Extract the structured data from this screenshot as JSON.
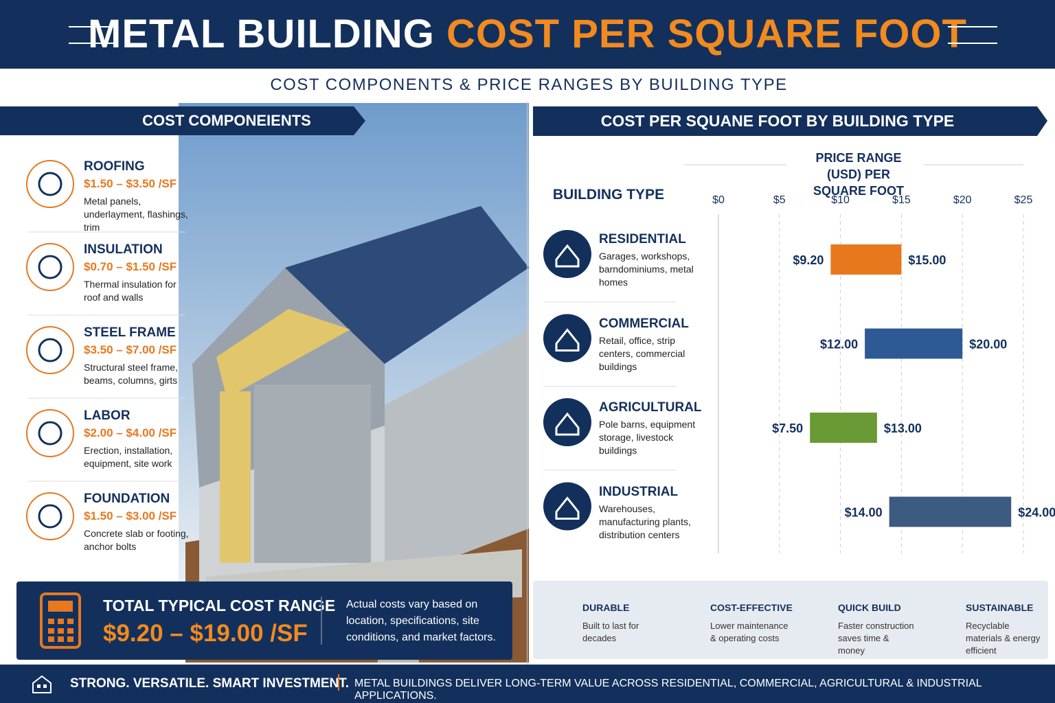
{
  "header": {
    "title_part1": "METAL BUILDING",
    "title_part2": "COST PER SQUARE FOOT",
    "subtitle": "COST COMPONENTS & PRICE RANGES BY BUILDING TYPE"
  },
  "components": {
    "heading": "COST COMPONEIENTS",
    "items": [
      {
        "name": "ROOFING",
        "cost": "$1.50 – $3.50 /SF",
        "description": "Metal panels, underlayment, flashings, trim"
      },
      {
        "name": "INSULATION",
        "cost": "$0.70 – $1.50 /SF",
        "description": "Thermal insulation for roof and walls"
      },
      {
        "name": "STEEL FRAME",
        "cost": "$3.50 – $7.00 /SF",
        "description": "Structural steel frame, beams, columns, girts"
      },
      {
        "name": "LABOR",
        "cost": "$2.00 – $4.00 /SF",
        "description": "Erection, installation, equipment, site work"
      },
      {
        "name": "FOUNDATION",
        "cost": "$1.50 – $3.00 /SF",
        "description": "Concrete slab or footing, anchor bolts"
      }
    ]
  },
  "total": {
    "title": "TOTAL TYPICAL COST RANGE",
    "range": "$9.20 – $19.00 /SF",
    "note": "Actual costs vary based on location, specifications, site conditions, and market factors."
  },
  "chart_data": {
    "type": "range_bar",
    "title": "COST PER SQUANE FOOT BY BUILDING TYPE",
    "x_label": "PRICE RANGE (USD) PER SQUARE FOOT",
    "category_label": "BUILDING TYPE",
    "categories": [
      "RESIDENTIAL",
      "COMMERCIAL",
      "AGRICULTURAL",
      "INDUSTRIAL"
    ],
    "descriptions": [
      "Garages, workshops, barndominiums, metal homes",
      "Retail, office, strip centers, commercial buildings",
      "Pole barns, equipment storage, livestock buildings",
      "Warehouses, manufacturing plants, distribution centers"
    ],
    "low": [
      9.2,
      12,
      7.5,
      14
    ],
    "high": [
      15,
      20,
      13,
      24
    ],
    "low_labels": [
      "$9.20",
      "$12.00",
      "$7.50",
      "$14.00"
    ],
    "high_labels": [
      "$15.00",
      "$20.00",
      "$13.00",
      "$24.00"
    ],
    "colors": [
      "#e8781e",
      "#2d5a94",
      "#6a9a35",
      "#3d5a80"
    ],
    "xlim": [
      0,
      25
    ],
    "xticks": [
      {
        "value": 0,
        "label": "$0"
      },
      {
        "value": 5,
        "label": "$5"
      },
      {
        "value": 10,
        "label": "$10"
      },
      {
        "value": 15,
        "label": "$15"
      },
      {
        "value": 20,
        "label": "$20"
      },
      {
        "value": 25,
        "label": "$25"
      }
    ],
    "grid": true
  },
  "features": [
    {
      "title": "DURABLE",
      "text": "Built to last for decades"
    },
    {
      "title": "COST-EFFECTIVE",
      "text": "Lower maintenance & operating costs"
    },
    {
      "title": "QUICK BUILD",
      "text": "Faster construction saves time & money"
    },
    {
      "title": "SUSTAINABLE",
      "text": "Recyclable materials & energy efficient"
    }
  ],
  "footer": {
    "tagline": "STRONG. VERSATILE. SMART INVESTMENT.",
    "text": "METAL BUILDINGS DELIVER LONG-TERM VALUE ACROSS RESIDENTIAL, COMMERCIAL, AGRICULTURAL & INDUSTRIAL APPLICATIONS."
  }
}
